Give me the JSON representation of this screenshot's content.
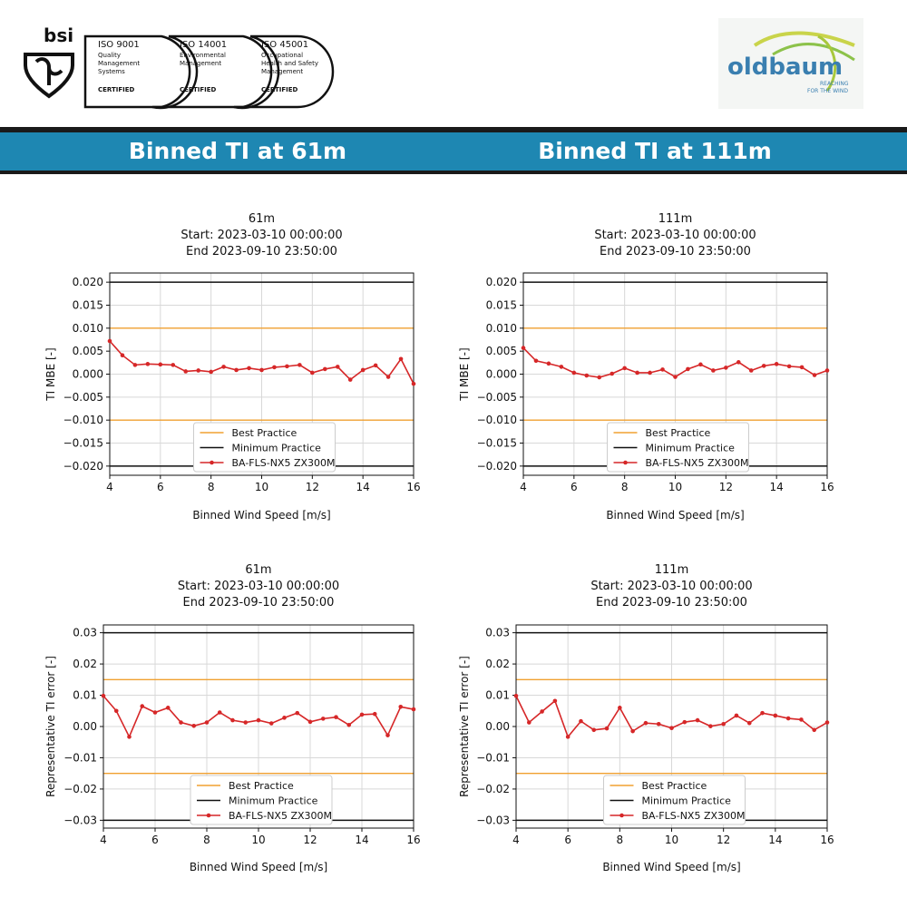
{
  "header": {
    "bsi": {
      "logo_text": "bsi",
      "certs": [
        {
          "code": "ISO 9001",
          "desc": [
            "Quality",
            "Management",
            "Systems"
          ],
          "status": "CERTIFIED"
        },
        {
          "code": "ISO 14001",
          "desc": [
            "Environmental",
            "Management"
          ],
          "status": "CERTIFIED"
        },
        {
          "code": "ISO 45001",
          "desc": [
            "Occupational",
            "Health and Safety",
            "Management"
          ],
          "status": "CERTIFIED"
        }
      ]
    },
    "oldbaum": {
      "name": "oldbaum",
      "tagline_1": "REACHING",
      "tagline_2": "FOR THE WIND"
    }
  },
  "banner": {
    "left_title": "Binned TI at 61m",
    "right_title": "Binned TI at 111m"
  },
  "colors": {
    "best_practice": "#f0a030",
    "minimum_practice": "#111111",
    "series": "#d62728",
    "banner": "#1e87b2"
  },
  "chart_data": [
    {
      "type": "line",
      "title": [
        "61m",
        "Start: 2023-03-10 00:00:00",
        "End 2023-09-10 23:50:00"
      ],
      "xlabel": "Binned Wind Speed [m/s]",
      "ylabel": "TI MBE [-]",
      "xlim": [
        4,
        16
      ],
      "ylim": [
        -0.022,
        0.022
      ],
      "xticks": [
        4,
        6,
        8,
        10,
        12,
        14,
        16
      ],
      "yticks": [
        -0.02,
        -0.015,
        -0.01,
        -0.005,
        0.0,
        0.005,
        0.01,
        0.015,
        0.02
      ],
      "ytick_labels": [
        "−0.020",
        "−0.015",
        "−0.010",
        "−0.005",
        "0.000",
        "0.005",
        "0.010",
        "0.015",
        "0.020"
      ],
      "grid": true,
      "legend_position": "lower-center",
      "reference_lines": [
        {
          "name": "Best Practice",
          "values": [
            0.01,
            -0.01
          ],
          "color": "#f0a030"
        },
        {
          "name": "Minimum Practice",
          "values": [
            0.02,
            -0.02
          ],
          "color": "#111111"
        }
      ],
      "series": [
        {
          "name": "BA-FLS-NX5 ZX300M",
          "x": [
            4,
            4.5,
            5,
            5.5,
            6,
            6.5,
            7,
            7.5,
            8,
            8.5,
            9,
            9.5,
            10,
            10.5,
            11,
            11.5,
            12,
            12.5,
            13,
            13.5,
            14,
            14.5,
            15,
            15.5,
            16
          ],
          "values": [
            0.0072,
            0.0041,
            0.002,
            0.0022,
            0.0021,
            0.002,
            0.0006,
            0.0008,
            0.0005,
            0.0016,
            0.0009,
            0.0013,
            0.0009,
            0.0015,
            0.0017,
            0.002,
            0.0003,
            0.0011,
            0.0016,
            -0.0012,
            0.0009,
            0.0019,
            -0.0006,
            0.0033,
            -0.0021
          ]
        }
      ]
    },
    {
      "type": "line",
      "title": [
        "111m",
        "Start: 2023-03-10 00:00:00",
        "End 2023-09-10 23:50:00"
      ],
      "xlabel": "Binned Wind Speed [m/s]",
      "ylabel": "TI MBE [-]",
      "xlim": [
        4,
        16
      ],
      "ylim": [
        -0.022,
        0.022
      ],
      "xticks": [
        4,
        6,
        8,
        10,
        12,
        14,
        16
      ],
      "yticks": [
        -0.02,
        -0.015,
        -0.01,
        -0.005,
        0.0,
        0.005,
        0.01,
        0.015,
        0.02
      ],
      "ytick_labels": [
        "−0.020",
        "−0.015",
        "−0.010",
        "−0.005",
        "0.000",
        "0.005",
        "0.010",
        "0.015",
        "0.020"
      ],
      "grid": true,
      "legend_position": "lower-center",
      "reference_lines": [
        {
          "name": "Best Practice",
          "values": [
            0.01,
            -0.01
          ],
          "color": "#f0a030"
        },
        {
          "name": "Minimum Practice",
          "values": [
            0.02,
            -0.02
          ],
          "color": "#111111"
        }
      ],
      "series": [
        {
          "name": "BA-FLS-NX5 ZX300M",
          "x": [
            4,
            4.5,
            5,
            5.5,
            6,
            6.5,
            7,
            7.5,
            8,
            8.5,
            9,
            9.5,
            10,
            10.5,
            11,
            11.5,
            12,
            12.5,
            13,
            13.5,
            14,
            14.5,
            15,
            15.5,
            16
          ],
          "values": [
            0.0057,
            0.0029,
            0.0023,
            0.0016,
            0.0003,
            -0.0003,
            -0.0007,
            0.0001,
            0.0013,
            0.0003,
            0.0003,
            0.001,
            -0.0006,
            0.0011,
            0.0021,
            0.0008,
            0.0014,
            0.0026,
            0.0008,
            0.0018,
            0.0022,
            0.0017,
            0.0015,
            -0.0002,
            0.0008
          ]
        }
      ]
    },
    {
      "type": "line",
      "title": [
        "61m",
        "Start: 2023-03-10 00:00:00",
        "End 2023-09-10 23:50:00"
      ],
      "xlabel": "Binned Wind Speed [m/s]",
      "ylabel": "Representative TI error [-]",
      "xlim": [
        4,
        16
      ],
      "ylim": [
        -0.0325,
        0.0325
      ],
      "xticks": [
        4,
        6,
        8,
        10,
        12,
        14,
        16
      ],
      "yticks": [
        -0.03,
        -0.02,
        -0.01,
        0.0,
        0.01,
        0.02,
        0.03
      ],
      "ytick_labels": [
        "−0.03",
        "−0.02",
        "−0.01",
        "0.00",
        "0.01",
        "0.02",
        "0.03"
      ],
      "grid": true,
      "legend_position": "lower-center",
      "reference_lines": [
        {
          "name": "Best Practice",
          "values": [
            0.015,
            -0.015
          ],
          "color": "#f0a030"
        },
        {
          "name": "Minimum Practice",
          "values": [
            0.03,
            -0.03
          ],
          "color": "#111111"
        }
      ],
      "series": [
        {
          "name": "BA-FLS-NX5 ZX300M",
          "x": [
            4,
            4.5,
            5,
            5.5,
            6,
            6.5,
            7,
            7.5,
            8,
            8.5,
            9,
            9.5,
            10,
            10.5,
            11,
            11.5,
            12,
            12.5,
            13,
            13.5,
            14,
            14.5,
            15,
            15.5,
            16
          ],
          "values": [
            0.0098,
            0.005,
            -0.0033,
            0.0065,
            0.0045,
            0.006,
            0.0013,
            0.0002,
            0.0013,
            0.0045,
            0.002,
            0.0013,
            0.002,
            0.001,
            0.0028,
            0.0043,
            0.0015,
            0.0025,
            0.003,
            0.0005,
            0.0038,
            0.004,
            -0.0028,
            0.0063,
            0.0055
          ]
        }
      ]
    },
    {
      "type": "line",
      "title": [
        "111m",
        "Start: 2023-03-10 00:00:00",
        "End 2023-09-10 23:50:00"
      ],
      "xlabel": "Binned Wind Speed [m/s]",
      "ylabel": "Representative TI error [-]",
      "xlim": [
        4,
        16
      ],
      "ylim": [
        -0.0325,
        0.0325
      ],
      "xticks": [
        4,
        6,
        8,
        10,
        12,
        14,
        16
      ],
      "yticks": [
        -0.03,
        -0.02,
        -0.01,
        0.0,
        0.01,
        0.02,
        0.03
      ],
      "ytick_labels": [
        "−0.03",
        "−0.02",
        "−0.01",
        "0.00",
        "0.01",
        "0.02",
        "0.03"
      ],
      "grid": true,
      "legend_position": "lower-center",
      "reference_lines": [
        {
          "name": "Best Practice",
          "values": [
            0.015,
            -0.015
          ],
          "color": "#f0a030"
        },
        {
          "name": "Minimum Practice",
          "values": [
            0.03,
            -0.03
          ],
          "color": "#111111"
        }
      ],
      "series": [
        {
          "name": "BA-FLS-NX5 ZX300M",
          "x": [
            4,
            4.5,
            5,
            5.5,
            6,
            6.5,
            7,
            7.5,
            8,
            8.5,
            9,
            9.5,
            10,
            10.5,
            11,
            11.5,
            12,
            12.5,
            13,
            13.5,
            14,
            14.5,
            15,
            15.5,
            16
          ],
          "values": [
            0.0098,
            0.0013,
            0.0048,
            0.0082,
            -0.0033,
            0.0017,
            -0.0011,
            -0.0006,
            0.006,
            -0.0015,
            0.0011,
            0.0008,
            -0.0005,
            0.0014,
            0.002,
            0.0001,
            0.0008,
            0.0035,
            0.0011,
            0.0043,
            0.0035,
            0.0026,
            0.0022,
            -0.0011,
            0.0013
          ]
        }
      ]
    }
  ]
}
